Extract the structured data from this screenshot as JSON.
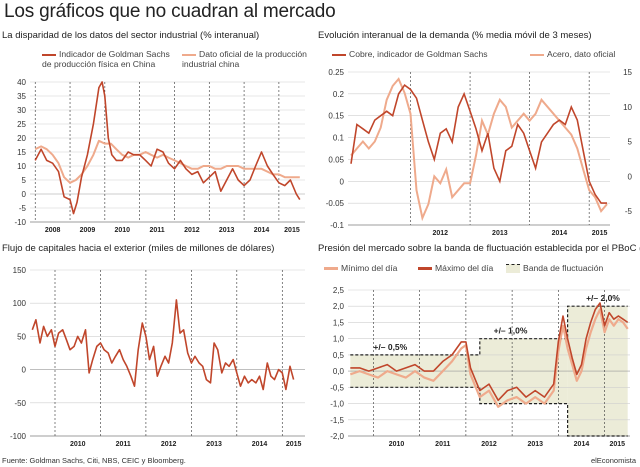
{
  "title": "Los gráficos que no cuadran al mercado",
  "footer": {
    "source": "Fuente: Goldman Sachs, Citi, NBS, CEIC y Bloomberg.",
    "brand": "elEconomista"
  },
  "colors": {
    "dark": "#c0462b",
    "light": "#efaa8c",
    "band": "#ececd8",
    "text": "#222222"
  },
  "chart_data": [
    {
      "type": "line",
      "title": "La disparidad de los datos del sector industrial (% interanual)",
      "ylim": [
        -10,
        40
      ],
      "yticks": [
        "40",
        "35",
        "30",
        "25",
        "20",
        "15",
        "10",
        "5",
        "0",
        "-5",
        "-10"
      ],
      "xticks": [
        "2008",
        "2009",
        "2010",
        "2011",
        "2012",
        "2013",
        "2014",
        "2015"
      ],
      "series": [
        {
          "name": "Indicador de Goldman Sachs de producción física en China",
          "color": "#c0462b",
          "x": [
            2008.0,
            2008.17,
            2008.33,
            2008.5,
            2008.67,
            2008.83,
            2009.0,
            2009.1,
            2009.2,
            2009.33,
            2009.5,
            2009.67,
            2009.83,
            2009.92,
            2010.0,
            2010.1,
            2010.2,
            2010.33,
            2010.5,
            2010.67,
            2010.83,
            2011.0,
            2011.17,
            2011.33,
            2011.5,
            2011.67,
            2011.83,
            2012.0,
            2012.17,
            2012.33,
            2012.5,
            2012.67,
            2012.83,
            2013.0,
            2013.17,
            2013.33,
            2013.5,
            2013.67,
            2013.83,
            2014.0,
            2014.17,
            2014.33,
            2014.5,
            2014.67,
            2014.83,
            2015.0,
            2015.17,
            2015.33,
            2015.5,
            2015.6
          ],
          "values": [
            12,
            16,
            12,
            11,
            8,
            -1,
            -2,
            -7,
            -3,
            6,
            14,
            25,
            38,
            40,
            35,
            20,
            14,
            12,
            12,
            15,
            14,
            14,
            12,
            10,
            16,
            15,
            11,
            9,
            12,
            9,
            7,
            8,
            4,
            6,
            8,
            1,
            5,
            9,
            5,
            3,
            5,
            10,
            15,
            10,
            7,
            4,
            3,
            5,
            0,
            -2
          ]
        },
        {
          "name": "Dato oficial de la producción industrial china",
          "color": "#efaa8c",
          "x": [
            2008.0,
            2008.17,
            2008.33,
            2008.5,
            2008.67,
            2008.83,
            2009.0,
            2009.17,
            2009.33,
            2009.5,
            2009.67,
            2009.83,
            2010.0,
            2010.17,
            2010.33,
            2010.5,
            2010.67,
            2010.83,
            2011.0,
            2011.17,
            2011.33,
            2011.5,
            2011.67,
            2011.83,
            2012.0,
            2012.17,
            2012.33,
            2012.5,
            2012.67,
            2012.83,
            2013.0,
            2013.17,
            2013.33,
            2013.5,
            2013.67,
            2013.83,
            2014.0,
            2014.17,
            2014.33,
            2014.5,
            2014.67,
            2014.83,
            2015.0,
            2015.17,
            2015.33,
            2015.5,
            2015.6
          ],
          "values": [
            16,
            17,
            16,
            14,
            11,
            6,
            4,
            5,
            7,
            10,
            14,
            19,
            18,
            18,
            16,
            14,
            13,
            14,
            14,
            15,
            14,
            13,
            14,
            13,
            12,
            11,
            10,
            9,
            9,
            10,
            10,
            9,
            9,
            10,
            10,
            10,
            9,
            9,
            9,
            9,
            8,
            7,
            7,
            6,
            6,
            6,
            6
          ]
        }
      ]
    },
    {
      "type": "line",
      "title": "Evolución interanual de la demanda (% media móvil de 3 meses)",
      "yticks_left": [
        "0.25",
        "0.2",
        "0.15",
        "0.1",
        "0.05",
        "0",
        "-0.05",
        "-0.1"
      ],
      "yticks_right": [
        "15",
        "10",
        "5",
        "0",
        "-5"
      ],
      "ylim_left": [
        -0.1,
        0.25
      ],
      "ylim_right": [
        -7,
        15
      ],
      "xticks": [
        "2012",
        "2013",
        "2014",
        "2015"
      ],
      "series": [
        {
          "name": "Cobre, indicador de Goldman Sachs",
          "color": "#c0462b",
          "axis": "left",
          "x": [
            2011.0,
            2011.1,
            2011.2,
            2011.3,
            2011.4,
            2011.5,
            2011.6,
            2011.7,
            2011.8,
            2011.9,
            2012.0,
            2012.1,
            2012.2,
            2012.3,
            2012.4,
            2012.5,
            2012.6,
            2012.7,
            2012.8,
            2012.9,
            2013.0,
            2013.1,
            2013.2,
            2013.3,
            2013.4,
            2013.5,
            2013.6,
            2013.7,
            2013.8,
            2013.9,
            2014.0,
            2014.1,
            2014.2,
            2014.3,
            2014.4,
            2014.5,
            2014.6,
            2014.7,
            2014.8,
            2014.9,
            2015.0,
            2015.1,
            2015.2,
            2015.3
          ],
          "values": [
            0.04,
            0.13,
            0.12,
            0.11,
            0.14,
            0.15,
            0.16,
            0.15,
            0.2,
            0.22,
            0.21,
            0.19,
            0.14,
            0.09,
            0.05,
            0.11,
            0.12,
            0.09,
            0.17,
            0.2,
            0.16,
            0.12,
            0.07,
            0.11,
            0.03,
            0.0,
            0.07,
            0.08,
            0.13,
            0.11,
            0.07,
            0.03,
            0.09,
            0.11,
            0.13,
            0.14,
            0.13,
            0.17,
            0.14,
            0.07,
            0.0,
            -0.03,
            -0.05,
            -0.05
          ]
        },
        {
          "name": "Acero, dato oficial",
          "color": "#efaa8c",
          "axis": "right",
          "x": [
            2011.0,
            2011.1,
            2011.2,
            2011.3,
            2011.4,
            2011.5,
            2011.6,
            2011.7,
            2011.8,
            2011.9,
            2012.0,
            2012.1,
            2012.2,
            2012.3,
            2012.4,
            2012.5,
            2012.6,
            2012.7,
            2012.8,
            2012.9,
            2013.0,
            2013.1,
            2013.2,
            2013.3,
            2013.4,
            2013.5,
            2013.6,
            2013.7,
            2013.8,
            2013.9,
            2014.0,
            2014.1,
            2014.2,
            2014.3,
            2014.4,
            2014.5,
            2014.6,
            2014.7,
            2014.8,
            2014.9,
            2015.0,
            2015.1,
            2015.2,
            2015.3
          ],
          "values": [
            3,
            4,
            5,
            4,
            5,
            7,
            11,
            13,
            14,
            12,
            9,
            -2,
            -6,
            -4,
            0,
            -1,
            1,
            -3,
            -2,
            -1,
            -1,
            3,
            8,
            6,
            9,
            11,
            10,
            7,
            8,
            9,
            8,
            9,
            11,
            10,
            9,
            8,
            7,
            6,
            4,
            1,
            -2,
            -3,
            -5,
            -4
          ]
        }
      ]
    },
    {
      "type": "line",
      "title": "Flujo de capitales hacia el exterior (miles de millones de dólares)",
      "ylim": [
        -100,
        150
      ],
      "yticks": [
        "150",
        "100",
        "50",
        "0",
        "-50",
        "-100"
      ],
      "xticks": [
        "2010",
        "2011",
        "2012",
        "2013",
        "2014",
        "2015"
      ],
      "series": [
        {
          "name": "Flujo de capitales",
          "color": "#c0462b",
          "x": [
            2009.5,
            2009.58,
            2009.67,
            2009.75,
            2009.83,
            2009.92,
            2010.0,
            2010.08,
            2010.17,
            2010.25,
            2010.33,
            2010.42,
            2010.5,
            2010.58,
            2010.67,
            2010.75,
            2010.83,
            2010.92,
            2011.0,
            2011.08,
            2011.17,
            2011.25,
            2011.33,
            2011.42,
            2011.5,
            2011.58,
            2011.67,
            2011.75,
            2011.83,
            2011.92,
            2012.0,
            2012.08,
            2012.17,
            2012.25,
            2012.33,
            2012.42,
            2012.5,
            2012.58,
            2012.67,
            2012.75,
            2012.83,
            2012.92,
            2013.0,
            2013.08,
            2013.17,
            2013.25,
            2013.33,
            2013.42,
            2013.5,
            2013.58,
            2013.67,
            2013.75,
            2013.83,
            2013.92,
            2014.0,
            2014.08,
            2014.17,
            2014.25,
            2014.33,
            2014.42,
            2014.5,
            2014.58,
            2014.67,
            2014.75,
            2014.83,
            2014.92,
            2015.0,
            2015.08,
            2015.17,
            2015.25
          ],
          "values": [
            60,
            75,
            40,
            65,
            50,
            60,
            35,
            55,
            60,
            45,
            30,
            35,
            50,
            40,
            60,
            -5,
            15,
            35,
            40,
            30,
            25,
            10,
            20,
            30,
            15,
            5,
            -10,
            -25,
            30,
            70,
            50,
            15,
            35,
            -10,
            5,
            20,
            10,
            40,
            105,
            55,
            60,
            25,
            10,
            20,
            10,
            5,
            -15,
            -20,
            40,
            30,
            -5,
            10,
            5,
            15,
            -5,
            -25,
            -10,
            -20,
            -15,
            -20,
            -10,
            -30,
            10,
            -10,
            -15,
            0,
            -5,
            -30,
            5,
            -15
          ]
        }
      ]
    },
    {
      "type": "line",
      "title": "Presión del mercado sobre la banda de fluctuación establecida por el PBoC (%)",
      "ylim": [
        -2.0,
        2.5
      ],
      "yticks": [
        "2,5",
        "2,0",
        "1,5",
        "1,0",
        "0,5",
        "0,0",
        "-0,5",
        "-1,0",
        "-1,5",
        "-2,0"
      ],
      "xticks": [
        "2010",
        "2011",
        "2012",
        "2013",
        "2014",
        "2015"
      ],
      "annotations": [
        "+/– 0,5%",
        "+/– 1,0%",
        "+/– 2,0%"
      ],
      "series": [
        {
          "name": "Mínimo del día",
          "color": "#efaa8c",
          "x": [
            2009.5,
            2009.7,
            2009.9,
            2010.1,
            2010.3,
            2010.5,
            2010.7,
            2010.9,
            2011.1,
            2011.3,
            2011.5,
            2011.7,
            2011.9,
            2012.0,
            2012.1,
            2012.3,
            2012.5,
            2012.7,
            2012.9,
            2013.1,
            2013.3,
            2013.5,
            2013.7,
            2013.9,
            2014.0,
            2014.1,
            2014.2,
            2014.3,
            2014.4,
            2014.5,
            2014.6,
            2014.7,
            2014.8,
            2014.9,
            2015.0,
            2015.1,
            2015.2,
            2015.3,
            2015.4,
            2015.5
          ],
          "values": [
            -0.1,
            0.0,
            -0.1,
            -0.2,
            0.0,
            -0.1,
            -0.2,
            0.0,
            -0.2,
            -0.3,
            0.0,
            0.3,
            0.7,
            0.8,
            -0.1,
            -0.8,
            -0.6,
            -1.1,
            -0.9,
            -0.8,
            -1.0,
            -0.8,
            -1.0,
            -0.6,
            0.6,
            1.4,
            0.7,
            0.2,
            -0.3,
            0.0,
            0.7,
            1.2,
            1.6,
            1.9,
            1.2,
            1.6,
            1.4,
            1.6,
            1.5,
            1.3
          ]
        },
        {
          "name": "Máximo del día",
          "color": "#c0462b",
          "x": [
            2009.5,
            2009.7,
            2009.9,
            2010.1,
            2010.3,
            2010.5,
            2010.7,
            2010.9,
            2011.1,
            2011.3,
            2011.5,
            2011.7,
            2011.9,
            2012.0,
            2012.1,
            2012.3,
            2012.5,
            2012.7,
            2012.9,
            2013.1,
            2013.3,
            2013.5,
            2013.7,
            2013.9,
            2014.0,
            2014.1,
            2014.2,
            2014.3,
            2014.4,
            2014.5,
            2014.6,
            2014.7,
            2014.8,
            2014.9,
            2015.0,
            2015.1,
            2015.2,
            2015.3,
            2015.4,
            2015.5
          ],
          "values": [
            0.1,
            0.1,
            0.0,
            0.1,
            0.2,
            0.0,
            0.1,
            0.2,
            0.0,
            0.0,
            0.3,
            0.5,
            0.9,
            0.9,
            0.1,
            -0.6,
            -0.4,
            -0.9,
            -0.6,
            -0.5,
            -0.8,
            -0.6,
            -0.8,
            -0.4,
            0.9,
            1.7,
            1.0,
            0.4,
            -0.1,
            0.2,
            1.0,
            1.5,
            1.9,
            2.1,
            1.4,
            1.8,
            1.6,
            1.7,
            1.6,
            1.5
          ]
        },
        {
          "name": "Banda de fluctuación",
          "color": "#222222",
          "type": "band",
          "segments": [
            {
              "x0": 2009.5,
              "x1": 2012.3,
              "upper": 0.5,
              "lower": -0.5
            },
            {
              "x0": 2012.3,
              "x1": 2014.2,
              "upper": 1.0,
              "lower": -1.0
            },
            {
              "x0": 2014.2,
              "x1": 2015.5,
              "upper": 2.0,
              "lower": -2.0
            }
          ]
        }
      ]
    }
  ]
}
